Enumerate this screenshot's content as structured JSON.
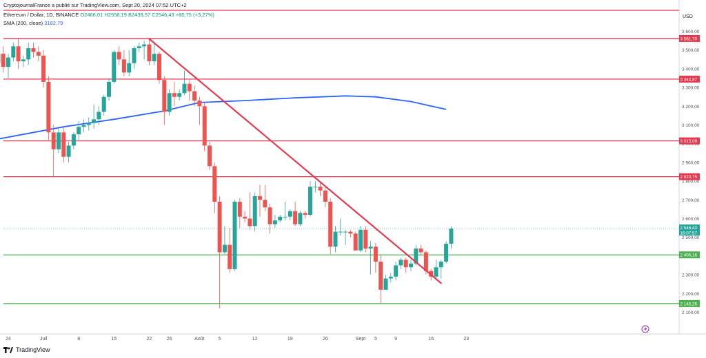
{
  "header": {
    "published": "CryptojournalFrance a publié sur TradingView.com, Sept 20, 2024 07:52 UTC+2",
    "symbol": "Ethereum / Dollar, 1D, BINANCE",
    "ohlc": {
      "o": "O2466,01",
      "h": "H2558,19",
      "b": "B2439,57",
      "c": "C2546,43",
      "chg": "+80,75 (+3,27%)"
    },
    "sma_label": "SMA (200, close)",
    "sma_value": "3182,79"
  },
  "footer": {
    "brand": "TradingView"
  },
  "colors": {
    "up": "#26a69a",
    "down": "#ef5350",
    "hline_red": "#e53950",
    "hline_green": "#4caf50",
    "trend": "#e53950",
    "sma": "#2962ff"
  },
  "chart_data": {
    "type": "candlestick",
    "currency": "USD",
    "y_ticks": [
      "3 600,00",
      "3 500,00",
      "3 400,00",
      "3 300,00",
      "3 200,00",
      "3 100,00",
      "3 000,00",
      "2 900,00",
      "2 800,00",
      "2 700,00",
      "2 600,00",
      "2 500,00",
      "2 400,00",
      "2 300,00",
      "2 200,00",
      "2 100,00"
    ],
    "ylim": [
      2040,
      3700
    ],
    "x_labels": [
      {
        "label": "24",
        "date": "2024-06-24"
      },
      {
        "label": "Juil",
        "date": "2024-07-01"
      },
      {
        "label": "8",
        "date": "2024-07-08"
      },
      {
        "label": "15",
        "date": "2024-07-15"
      },
      {
        "label": "22",
        "date": "2024-07-22"
      },
      {
        "label": "26",
        "date": "2024-07-26"
      },
      {
        "label": "Août",
        "date": "2024-08-01"
      },
      {
        "label": "5",
        "date": "2024-08-05"
      },
      {
        "label": "12",
        "date": "2024-08-12"
      },
      {
        "label": "19",
        "date": "2024-08-19"
      },
      {
        "label": "26",
        "date": "2024-08-26"
      },
      {
        "label": "Sept",
        "date": "2024-09-02"
      },
      {
        "label": "5",
        "date": "2024-09-05"
      },
      {
        "label": "9",
        "date": "2024-09-09"
      },
      {
        "label": "16",
        "date": "2024-09-16"
      },
      {
        "label": "23",
        "date": "2024-09-23"
      }
    ],
    "horizontal_levels": [
      {
        "value": 3561.7,
        "label": "3 561,70",
        "color": "red"
      },
      {
        "value": 3344.87,
        "label": "3 344,87",
        "color": "red"
      },
      {
        "value": 3015.09,
        "label": "3 015,09",
        "color": "red"
      },
      {
        "value": 2823.75,
        "label": "2 823,75",
        "color": "red"
      },
      {
        "value": 2406.16,
        "label": "2 406,16",
        "color": "green"
      },
      {
        "value": 2146.26,
        "label": "2 146,26",
        "color": "green"
      }
    ],
    "top_border_value": 3710,
    "last_price": {
      "value": 2546.43,
      "label": "2 546,43",
      "countdown": "16:07:57"
    },
    "trendline": {
      "from": {
        "date": "2024-07-22",
        "value": 3560
      },
      "to": {
        "date": "2024-09-18",
        "value": 2255
      }
    },
    "sma200": [
      {
        "date": "2024-06-21",
        "value": 3020
      },
      {
        "date": "2024-07-05",
        "value": 3090
      },
      {
        "date": "2024-07-15",
        "value": 3130
      },
      {
        "date": "2024-07-25",
        "value": 3175
      },
      {
        "date": "2024-08-01",
        "value": 3220
      },
      {
        "date": "2024-08-10",
        "value": 3230
      },
      {
        "date": "2024-08-20",
        "value": 3245
      },
      {
        "date": "2024-08-30",
        "value": 3255
      },
      {
        "date": "2024-09-05",
        "value": 3250
      },
      {
        "date": "2024-09-12",
        "value": 3225
      },
      {
        "date": "2024-09-19",
        "value": 3183
      }
    ],
    "candles": [
      {
        "date": "2024-06-21",
        "o": 3510,
        "h": 3560,
        "c": 3430,
        "l": 3380
      },
      {
        "date": "2024-06-22",
        "o": 3430,
        "h": 3520,
        "c": 3480,
        "l": 3400
      },
      {
        "date": "2024-06-23",
        "o": 3480,
        "h": 3520,
        "c": 3410,
        "l": 3380
      },
      {
        "date": "2024-06-24",
        "o": 3410,
        "h": 3480,
        "c": 3460,
        "l": 3350
      },
      {
        "date": "2024-06-25",
        "o": 3460,
        "h": 3540,
        "c": 3520,
        "l": 3440
      },
      {
        "date": "2024-06-26",
        "o": 3520,
        "h": 3560,
        "c": 3440,
        "l": 3400
      },
      {
        "date": "2024-06-27",
        "o": 3440,
        "h": 3470,
        "c": 3450,
        "l": 3410
      },
      {
        "date": "2024-06-28",
        "o": 3450,
        "h": 3540,
        "c": 3510,
        "l": 3420
      },
      {
        "date": "2024-06-29",
        "o": 3510,
        "h": 3540,
        "c": 3490,
        "l": 3460
      },
      {
        "date": "2024-06-30",
        "o": 3490,
        "h": 3520,
        "c": 3470,
        "l": 3440
      },
      {
        "date": "2024-07-01",
        "o": 3470,
        "h": 3500,
        "c": 3330,
        "l": 3300
      },
      {
        "date": "2024-07-02",
        "o": 3330,
        "h": 3360,
        "c": 3060,
        "l": 3020
      },
      {
        "date": "2024-07-03",
        "o": 3060,
        "h": 3100,
        "c": 2970,
        "l": 2820
      },
      {
        "date": "2024-07-04",
        "o": 2970,
        "h": 3080,
        "c": 3060,
        "l": 2950
      },
      {
        "date": "2024-07-05",
        "o": 3060,
        "h": 3090,
        "c": 2930,
        "l": 2900
      },
      {
        "date": "2024-07-06",
        "o": 2930,
        "h": 3010,
        "c": 2990,
        "l": 2900
      },
      {
        "date": "2024-07-07",
        "o": 2990,
        "h": 3060,
        "c": 3050,
        "l": 2970
      },
      {
        "date": "2024-07-08",
        "o": 3050,
        "h": 3120,
        "c": 3090,
        "l": 3020
      },
      {
        "date": "2024-07-09",
        "o": 3090,
        "h": 3130,
        "c": 3100,
        "l": 3060
      },
      {
        "date": "2024-07-10",
        "o": 3100,
        "h": 3140,
        "c": 3110,
        "l": 3070
      },
      {
        "date": "2024-07-11",
        "o": 3110,
        "h": 3210,
        "c": 3130,
        "l": 3080
      },
      {
        "date": "2024-07-12",
        "o": 3130,
        "h": 3200,
        "c": 3170,
        "l": 3100
      },
      {
        "date": "2024-07-13",
        "o": 3170,
        "h": 3260,
        "c": 3250,
        "l": 3150
      },
      {
        "date": "2024-07-14",
        "o": 3250,
        "h": 3350,
        "c": 3330,
        "l": 3230
      },
      {
        "date": "2024-07-15",
        "o": 3330,
        "h": 3500,
        "c": 3490,
        "l": 3320
      },
      {
        "date": "2024-07-16",
        "o": 3490,
        "h": 3520,
        "c": 3450,
        "l": 3420
      },
      {
        "date": "2024-07-17",
        "o": 3450,
        "h": 3500,
        "c": 3380,
        "l": 3360
      },
      {
        "date": "2024-07-18",
        "o": 3380,
        "h": 3500,
        "c": 3430,
        "l": 3360
      },
      {
        "date": "2024-07-19",
        "o": 3430,
        "h": 3520,
        "c": 3510,
        "l": 3400
      },
      {
        "date": "2024-07-20",
        "o": 3510,
        "h": 3540,
        "c": 3520,
        "l": 3490
      },
      {
        "date": "2024-07-21",
        "o": 3520,
        "h": 3550,
        "c": 3530,
        "l": 3450
      },
      {
        "date": "2024-07-22",
        "o": 3530,
        "h": 3560,
        "c": 3440,
        "l": 3420
      },
      {
        "date": "2024-07-23",
        "o": 3440,
        "h": 3540,
        "c": 3480,
        "l": 3420
      },
      {
        "date": "2024-07-24",
        "o": 3480,
        "h": 3490,
        "c": 3340,
        "l": 3320
      },
      {
        "date": "2024-07-25",
        "o": 3340,
        "h": 3360,
        "c": 3170,
        "l": 3100
      },
      {
        "date": "2024-07-26",
        "o": 3170,
        "h": 3290,
        "c": 3270,
        "l": 3150
      },
      {
        "date": "2024-07-27",
        "o": 3270,
        "h": 3330,
        "c": 3250,
        "l": 3200
      },
      {
        "date": "2024-07-28",
        "o": 3250,
        "h": 3290,
        "c": 3270,
        "l": 3230
      },
      {
        "date": "2024-07-29",
        "o": 3270,
        "h": 3390,
        "c": 3320,
        "l": 3260
      },
      {
        "date": "2024-07-30",
        "o": 3320,
        "h": 3340,
        "c": 3280,
        "l": 3230
      },
      {
        "date": "2024-07-31",
        "o": 3280,
        "h": 3310,
        "c": 3230,
        "l": 3200
      },
      {
        "date": "2024-08-01",
        "o": 3230,
        "h": 3250,
        "c": 3200,
        "l": 3100
      },
      {
        "date": "2024-08-02",
        "o": 3200,
        "h": 3220,
        "c": 2990,
        "l": 2960
      },
      {
        "date": "2024-08-03",
        "o": 2990,
        "h": 3010,
        "c": 2880,
        "l": 2860
      },
      {
        "date": "2024-08-04",
        "o": 2880,
        "h": 2900,
        "c": 2690,
        "l": 2630
      },
      {
        "date": "2024-08-05",
        "o": 2690,
        "h": 2720,
        "c": 2420,
        "l": 2120
      },
      {
        "date": "2024-08-06",
        "o": 2420,
        "h": 2560,
        "c": 2460,
        "l": 2410
      },
      {
        "date": "2024-08-07",
        "o": 2460,
        "h": 2550,
        "c": 2330,
        "l": 2310
      },
      {
        "date": "2024-08-08",
        "o": 2330,
        "h": 2700,
        "c": 2690,
        "l": 2320
      },
      {
        "date": "2024-08-09",
        "o": 2690,
        "h": 2710,
        "c": 2610,
        "l": 2550
      },
      {
        "date": "2024-08-10",
        "o": 2610,
        "h": 2640,
        "c": 2600,
        "l": 2580
      },
      {
        "date": "2024-08-11",
        "o": 2600,
        "h": 2740,
        "c": 2560,
        "l": 2540
      },
      {
        "date": "2024-08-12",
        "o": 2560,
        "h": 2740,
        "c": 2720,
        "l": 2530
      },
      {
        "date": "2024-08-13",
        "o": 2720,
        "h": 2780,
        "c": 2700,
        "l": 2610
      },
      {
        "date": "2024-08-14",
        "o": 2700,
        "h": 2780,
        "c": 2660,
        "l": 2640
      },
      {
        "date": "2024-08-15",
        "o": 2660,
        "h": 2680,
        "c": 2570,
        "l": 2520
      },
      {
        "date": "2024-08-16",
        "o": 2570,
        "h": 2620,
        "c": 2590,
        "l": 2550
      },
      {
        "date": "2024-08-17",
        "o": 2590,
        "h": 2620,
        "c": 2610,
        "l": 2580
      },
      {
        "date": "2024-08-18",
        "o": 2610,
        "h": 2690,
        "c": 2610,
        "l": 2590
      },
      {
        "date": "2024-08-19",
        "o": 2610,
        "h": 2650,
        "c": 2640,
        "l": 2590
      },
      {
        "date": "2024-08-20",
        "o": 2640,
        "h": 2690,
        "c": 2570,
        "l": 2560
      },
      {
        "date": "2024-08-21",
        "o": 2570,
        "h": 2640,
        "c": 2630,
        "l": 2560
      },
      {
        "date": "2024-08-22",
        "o": 2630,
        "h": 2640,
        "c": 2620,
        "l": 2600
      },
      {
        "date": "2024-08-23",
        "o": 2620,
        "h": 2800,
        "c": 2770,
        "l": 2610
      },
      {
        "date": "2024-08-24",
        "o": 2770,
        "h": 2800,
        "c": 2770,
        "l": 2740
      },
      {
        "date": "2024-08-25",
        "o": 2770,
        "h": 2790,
        "c": 2750,
        "l": 2720
      },
      {
        "date": "2024-08-26",
        "o": 2750,
        "h": 2770,
        "c": 2690,
        "l": 2660
      },
      {
        "date": "2024-08-27",
        "o": 2690,
        "h": 2710,
        "c": 2450,
        "l": 2410
      },
      {
        "date": "2024-08-28",
        "o": 2450,
        "h": 2560,
        "c": 2530,
        "l": 2420
      },
      {
        "date": "2024-08-29",
        "o": 2530,
        "h": 2600,
        "c": 2530,
        "l": 2510
      },
      {
        "date": "2024-08-30",
        "o": 2530,
        "h": 2540,
        "c": 2530,
        "l": 2460
      },
      {
        "date": "2024-08-31",
        "o": 2530,
        "h": 2540,
        "c": 2520,
        "l": 2500
      },
      {
        "date": "2024-09-01",
        "o": 2520,
        "h": 2530,
        "c": 2430,
        "l": 2430
      },
      {
        "date": "2024-09-02",
        "o": 2430,
        "h": 2560,
        "c": 2540,
        "l": 2420
      },
      {
        "date": "2024-09-03",
        "o": 2540,
        "h": 2560,
        "c": 2440,
        "l": 2420
      },
      {
        "date": "2024-09-04",
        "o": 2440,
        "h": 2480,
        "c": 2450,
        "l": 2300
      },
      {
        "date": "2024-09-05",
        "o": 2450,
        "h": 2470,
        "c": 2370,
        "l": 2310
      },
      {
        "date": "2024-09-06",
        "o": 2370,
        "h": 2410,
        "c": 2220,
        "l": 2150
      },
      {
        "date": "2024-09-07",
        "o": 2220,
        "h": 2300,
        "c": 2280,
        "l": 2220
      },
      {
        "date": "2024-09-08",
        "o": 2280,
        "h": 2310,
        "c": 2290,
        "l": 2260
      },
      {
        "date": "2024-09-09",
        "o": 2290,
        "h": 2370,
        "c": 2350,
        "l": 2270
      },
      {
        "date": "2024-09-10",
        "o": 2350,
        "h": 2390,
        "c": 2380,
        "l": 2330
      },
      {
        "date": "2024-09-11",
        "o": 2380,
        "h": 2390,
        "c": 2340,
        "l": 2310
      },
      {
        "date": "2024-09-12",
        "o": 2340,
        "h": 2380,
        "c": 2360,
        "l": 2320
      },
      {
        "date": "2024-09-13",
        "o": 2360,
        "h": 2460,
        "c": 2440,
        "l": 2350
      },
      {
        "date": "2024-09-14",
        "o": 2440,
        "h": 2460,
        "c": 2420,
        "l": 2400
      },
      {
        "date": "2024-09-15",
        "o": 2420,
        "h": 2430,
        "c": 2320,
        "l": 2300
      },
      {
        "date": "2024-09-16",
        "o": 2320,
        "h": 2330,
        "c": 2290,
        "l": 2270
      },
      {
        "date": "2024-09-17",
        "o": 2290,
        "h": 2380,
        "c": 2340,
        "l": 2270
      },
      {
        "date": "2024-09-18",
        "o": 2340,
        "h": 2380,
        "c": 2370,
        "l": 2280
      },
      {
        "date": "2024-09-19",
        "o": 2370,
        "h": 2480,
        "c": 2466,
        "l": 2360
      },
      {
        "date": "2024-09-20",
        "o": 2466,
        "h": 2558,
        "c": 2546,
        "l": 2440
      }
    ]
  }
}
